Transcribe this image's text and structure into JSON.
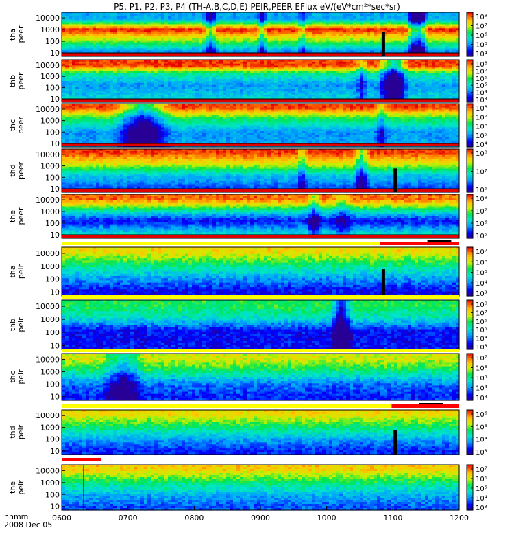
{
  "chart_data": {
    "type": "heatmap",
    "title": "P5, P1, P2, P3, P4 (TH-A,B,C,D,E) PEIR,PEER EFlux eV/(eV*cm²*sec*sr)",
    "x_tick_labels": [
      "0600",
      "0700",
      "0800",
      "0900",
      "1000",
      "1100",
      "1200"
    ],
    "x_label_row1": "hhmm",
    "x_label_row2": "2008 Dec 05",
    "x_range_hours": [
      6.0,
      12.0
    ],
    "colormap": "rainbow (blue-low to red-high)",
    "panels": [
      {
        "name": "thaPeer",
        "ylabel": [
          "tha",
          "peer"
        ],
        "y_tick_labels": [
          "10000",
          "1000",
          "100",
          "10"
        ],
        "y_log_range": [
          5,
          30000
        ],
        "colorbar_labels": [
          "10⁸",
          "10⁷",
          "10⁶",
          "10⁵",
          "10⁴"
        ],
        "profile": [
          [
            0.15,
            0.3
          ],
          [
            0.4,
            1.0
          ],
          [
            0.65,
            0.62
          ],
          [
            0.88,
            0.28
          ]
        ],
        "noise": 0.1,
        "bottom_line": true,
        "dips": [
          [
            0.37,
            0.35,
            0.02
          ],
          [
            0.5,
            0.25,
            0.015
          ],
          [
            0.6,
            0.2,
            0.015
          ],
          [
            0.88,
            0.4,
            0.02
          ],
          [
            0.9,
            0.45,
            0.02
          ]
        ],
        "gap_time": 0.805
      },
      {
        "name": "thbPeer",
        "ylabel": [
          "thb",
          "peer"
        ],
        "y_tick_labels": [
          "10000",
          "1000",
          "100",
          "10"
        ],
        "y_log_range": [
          5,
          30000
        ],
        "colorbar_labels": [
          "10⁸",
          "10⁷",
          "10⁶",
          "10⁵",
          "10⁴",
          "10³"
        ],
        "profile": [
          [
            0.15,
            0.95
          ],
          [
            0.35,
            0.45
          ],
          [
            0.6,
            0.28
          ],
          [
            0.9,
            0.38
          ]
        ],
        "noise": 0.12,
        "bottom_line": true,
        "dips": [
          [
            0.83,
            0.6,
            0.04
          ],
          [
            0.75,
            0.2,
            0.02
          ]
        ],
        "gap_time": null
      },
      {
        "name": "thcPeer",
        "ylabel": [
          "thc",
          "peer"
        ],
        "y_tick_labels": [
          "10000",
          "1000",
          "100",
          "10"
        ],
        "y_log_range": [
          5,
          30000
        ],
        "colorbar_labels": [
          "10⁸",
          "10⁷",
          "10⁶",
          "10⁵",
          "10⁴"
        ],
        "profile": [
          [
            0.1,
            0.95
          ],
          [
            0.35,
            0.55
          ],
          [
            0.65,
            0.28
          ],
          [
            0.9,
            0.3
          ]
        ],
        "noise": 0.1,
        "bottom_line": true,
        "dips": [
          [
            0.2,
            0.5,
            0.08
          ],
          [
            0.8,
            0.2,
            0.02
          ]
        ],
        "gap_time": null
      },
      {
        "name": "thdPeer",
        "ylabel": [
          "thd",
          "peer"
        ],
        "y_tick_labels": [
          "10000",
          "1000",
          "100",
          "10"
        ],
        "y_log_range": [
          5,
          30000
        ],
        "colorbar_labels": [
          "10⁸",
          "10⁷",
          "10⁶"
        ],
        "profile": [
          [
            0.1,
            0.95
          ],
          [
            0.35,
            0.7
          ],
          [
            0.62,
            0.35
          ],
          [
            0.88,
            0.2
          ]
        ],
        "noise": 0.1,
        "bottom_line": true,
        "dips": [
          [
            0.6,
            0.2,
            0.015
          ],
          [
            0.75,
            0.3,
            0.02
          ]
        ],
        "gap_time": 0.835
      },
      {
        "name": "thePeer",
        "ylabel": [
          "the",
          "peer"
        ],
        "y_tick_labels": [
          "10000",
          "1000",
          "100",
          "10"
        ],
        "y_log_range": [
          5,
          30000
        ],
        "colorbar_labels": [
          "10⁸",
          "10⁷",
          "10⁶",
          "10⁵"
        ],
        "profile": [
          [
            0.12,
            0.9
          ],
          [
            0.38,
            0.45
          ],
          [
            0.6,
            0.12
          ],
          [
            0.9,
            0.4
          ]
        ],
        "noise": 0.12,
        "bottom_line": true,
        "dips": [
          [
            0.63,
            0.25,
            0.02
          ],
          [
            0.7,
            0.2,
            0.03
          ]
        ],
        "gap_time": null
      },
      {
        "name": "thaPeir",
        "ylabel": [
          "tha",
          "peir"
        ],
        "y_tick_labels": [
          "10000",
          "1000",
          "100",
          "10"
        ],
        "y_log_range": [
          5,
          30000
        ],
        "colorbar_labels": [
          "10⁷",
          "10⁶",
          "10⁵",
          "10⁴",
          "10³"
        ],
        "profile": [
          [
            0.1,
            0.75
          ],
          [
            0.35,
            0.52
          ],
          [
            0.65,
            0.28
          ],
          [
            0.92,
            0.1
          ]
        ],
        "noise": 0.14,
        "bottom_line": false,
        "dips": [],
        "gap_time": 0.805
      },
      {
        "name": "thbPeir",
        "ylabel": [
          "thb",
          "peir"
        ],
        "y_tick_labels": [
          "10000",
          "1000",
          "100",
          "10"
        ],
        "y_log_range": [
          5,
          30000
        ],
        "colorbar_labels": [
          "10⁸",
          "10⁷",
          "10⁶",
          "10⁵",
          "10⁴",
          "10³"
        ],
        "profile": [
          [
            0.12,
            0.55
          ],
          [
            0.35,
            0.42
          ],
          [
            0.62,
            0.12
          ],
          [
            0.9,
            0.12
          ]
        ],
        "noise": 0.14,
        "bottom_line": false,
        "dips": [
          [
            0.7,
            0.45,
            0.03
          ]
        ],
        "gap_time": null
      },
      {
        "name": "thcPeir",
        "ylabel": [
          "thc",
          "peir"
        ],
        "y_tick_labels": [
          "10000",
          "1000",
          "100",
          "10"
        ],
        "y_log_range": [
          5,
          30000
        ],
        "colorbar_labels": [
          "10⁷",
          "10⁶",
          "10⁵",
          "10⁴",
          "10³"
        ],
        "profile": [
          [
            0.12,
            0.7
          ],
          [
            0.35,
            0.52
          ],
          [
            0.65,
            0.24
          ],
          [
            0.92,
            0.15
          ]
        ],
        "noise": 0.14,
        "bottom_line": false,
        "dips": [
          [
            0.15,
            0.3,
            0.06
          ]
        ],
        "gap_time": null
      },
      {
        "name": "thdPeir",
        "ylabel": [
          "thd",
          "peir"
        ],
        "y_tick_labels": [
          "10000",
          "1000",
          "100",
          "10"
        ],
        "y_log_range": [
          5,
          30000
        ],
        "colorbar_labels": [
          "10⁶",
          "10⁵",
          "10⁴",
          "10³"
        ],
        "profile": [
          [
            0.1,
            0.75
          ],
          [
            0.35,
            0.55
          ],
          [
            0.65,
            0.3
          ],
          [
            0.92,
            0.15
          ]
        ],
        "noise": 0.13,
        "bottom_line": false,
        "dips": [],
        "gap_time": 0.835
      },
      {
        "name": "thePeir",
        "ylabel": [
          "the",
          "peir"
        ],
        "y_tick_labels": [
          "10000",
          "1000",
          "100",
          "10"
        ],
        "y_log_range": [
          5,
          30000
        ],
        "colorbar_labels": [
          "10⁷",
          "10⁶",
          "10⁵",
          "10⁴",
          "10³"
        ],
        "profile": [
          [
            0.1,
            0.78
          ],
          [
            0.35,
            0.56
          ],
          [
            0.65,
            0.32
          ],
          [
            0.92,
            0.2
          ]
        ],
        "noise": 0.13,
        "bottom_line": false,
        "dips": [],
        "gap_time": null
      }
    ],
    "mode_bars": [
      {
        "after_panel": 4,
        "segments": [
          {
            "start": 0.0,
            "end": 0.8,
            "color": "#ffff00"
          },
          {
            "start": 0.8,
            "end": 1.0,
            "color": "#ff0000"
          }
        ],
        "small_black": [
          0.92,
          0.98
        ]
      },
      {
        "after_panel": 5,
        "segments": [
          {
            "start": 0.0,
            "end": 1.0,
            "color": "#ffff00"
          }
        ],
        "small_black": null
      },
      {
        "after_panel": 6,
        "segments": [
          {
            "start": 0.0,
            "end": 1.0,
            "color": "#ffff00"
          }
        ],
        "small_black": null
      },
      {
        "after_panel": 7,
        "segments": [
          {
            "start": 0.0,
            "end": 0.83,
            "color": "#ffff00"
          },
          {
            "start": 0.83,
            "end": 1.0,
            "color": "#ff0000"
          }
        ],
        "small_black": [
          0.9,
          0.96
        ]
      },
      {
        "after_panel": 8,
        "segments": [
          {
            "start": 0.0,
            "end": 0.1,
            "color": "#ff0000"
          }
        ],
        "small_black": null
      }
    ]
  }
}
